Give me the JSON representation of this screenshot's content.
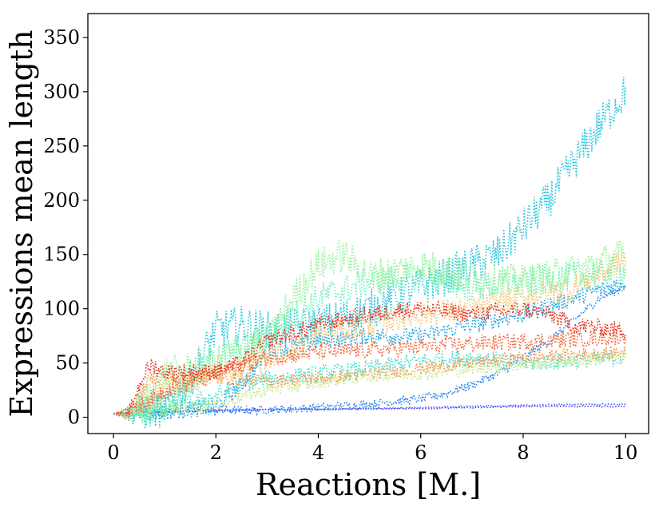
{
  "chart_data": {
    "type": "line",
    "style": "dotted",
    "title": "",
    "xlabel": "Reactions [M.]",
    "ylabel": "Expressions mean length",
    "xlim": [
      -0.5,
      10.45
    ],
    "ylim": [
      -15,
      372
    ],
    "xticks": [
      0,
      2,
      4,
      6,
      8,
      10
    ],
    "yticks": [
      0,
      50,
      100,
      150,
      200,
      250,
      300,
      350
    ],
    "grid": false,
    "legend": "none",
    "series": [
      {
        "name": "purple",
        "color": "#5a3fff",
        "noise": 0.5,
        "x": [
          0,
          0.3,
          1,
          2,
          3,
          4,
          5,
          6,
          7,
          8,
          9,
          10
        ],
        "y": [
          3,
          4,
          5,
          6,
          7,
          7,
          8,
          8,
          9,
          10,
          10,
          10
        ]
      },
      {
        "name": "blue",
        "color": "#3f66f2",
        "noise": 0.6,
        "x": [
          0,
          0.3,
          1,
          2,
          3,
          4,
          5,
          6,
          7,
          8,
          9,
          10
        ],
        "y": [
          3,
          4,
          5,
          6,
          7,
          8,
          8,
          9,
          10,
          11,
          12,
          12
        ]
      },
      {
        "name": "dodgerblue",
        "color": "#2e86ee",
        "noise": 4,
        "x": [
          0,
          0.3,
          1,
          2,
          3,
          4,
          5,
          6,
          6.5,
          7,
          7.5,
          8,
          8.5,
          9,
          9.5,
          10
        ],
        "y": [
          3,
          4,
          5,
          6,
          7,
          9,
          12,
          17,
          22,
          30,
          40,
          55,
          70,
          90,
          110,
          120
        ]
      },
      {
        "name": "azure",
        "color": "#1fa5e3",
        "noise": 8,
        "x": [
          0,
          0.3,
          1,
          2,
          2.5,
          3,
          4,
          5,
          6,
          7,
          8,
          9,
          10
        ],
        "y": [
          3,
          4,
          5,
          10,
          30,
          60,
          70,
          75,
          75,
          85,
          95,
          110,
          125
        ]
      },
      {
        "name": "cyan",
        "color": "#2cc6dc",
        "noise": 18,
        "x": [
          0,
          0.3,
          1,
          1.5,
          2,
          2.5,
          3,
          4,
          5,
          6,
          7,
          7.5,
          8,
          8.5,
          9,
          9.5,
          10
        ],
        "y": [
          3,
          4,
          8,
          35,
          80,
          85,
          80,
          85,
          100,
          120,
          140,
          150,
          175,
          200,
          235,
          270,
          300
        ]
      },
      {
        "name": "turquoise",
        "color": "#4be0cf",
        "noise": 8,
        "x": [
          0,
          0.3,
          1,
          2,
          2.5,
          3,
          4,
          5,
          6,
          7,
          8,
          9,
          10
        ],
        "y": [
          3,
          4,
          6,
          20,
          30,
          35,
          40,
          45,
          52,
          55,
          50,
          52,
          55
        ]
      },
      {
        "name": "aquamarine",
        "color": "#6ef0b8",
        "noise": 14,
        "x": [
          0,
          0.3,
          1,
          1.5,
          2,
          2.5,
          3,
          4,
          5,
          6,
          7,
          8,
          9,
          10
        ],
        "y": [
          3,
          4,
          10,
          30,
          55,
          65,
          75,
          110,
          125,
          130,
          120,
          125,
          130,
          135
        ]
      },
      {
        "name": "lightgreen",
        "color": "#98f49e",
        "noise": 16,
        "x": [
          0,
          0.3,
          0.7,
          1,
          2,
          3,
          3.5,
          4,
          4.5,
          5,
          6,
          7,
          8,
          9,
          10
        ],
        "y": [
          3,
          4,
          20,
          40,
          50,
          70,
          110,
          140,
          150,
          130,
          140,
          130,
          125,
          135,
          150
        ]
      },
      {
        "name": "yellowgreen",
        "color": "#c9e88a",
        "noise": 6,
        "x": [
          0,
          0.3,
          1,
          2,
          3,
          4,
          5,
          6,
          7,
          8,
          9,
          10
        ],
        "y": [
          3,
          4,
          6,
          12,
          25,
          32,
          38,
          40,
          45,
          48,
          52,
          55
        ]
      },
      {
        "name": "sand",
        "color": "#f4c878",
        "noise": 12,
        "x": [
          0,
          0.3,
          1,
          2,
          3,
          4,
          5,
          6,
          7,
          8,
          9,
          10
        ],
        "y": [
          3,
          4,
          25,
          40,
          55,
          75,
          85,
          95,
          100,
          110,
          120,
          145
        ]
      },
      {
        "name": "orange",
        "color": "#f59b55",
        "noise": 6,
        "x": [
          0,
          0.3,
          0.7,
          1,
          2,
          3,
          4,
          5,
          6,
          7,
          8,
          9,
          10
        ],
        "y": [
          3,
          4,
          35,
          38,
          35,
          34,
          36,
          40,
          45,
          50,
          55,
          58,
          60
        ]
      },
      {
        "name": "tomato",
        "color": "#f26a3b",
        "noise": 8,
        "x": [
          0,
          0.3,
          1,
          2,
          3,
          4,
          5,
          6,
          7,
          8,
          9,
          10
        ],
        "y": [
          3,
          4,
          25,
          40,
          55,
          60,
          62,
          65,
          68,
          70,
          72,
          75
        ]
      },
      {
        "name": "red",
        "color": "#e8321f",
        "noise": 8,
        "x": [
          0,
          0.3,
          0.6,
          0.75,
          1,
          2,
          2.5,
          3,
          4,
          5,
          6,
          7,
          8,
          8.5,
          9,
          10
        ],
        "y": [
          3,
          5,
          40,
          48,
          42,
          42,
          50,
          70,
          85,
          95,
          100,
          95,
          100,
          95,
          85,
          80
        ]
      }
    ]
  }
}
